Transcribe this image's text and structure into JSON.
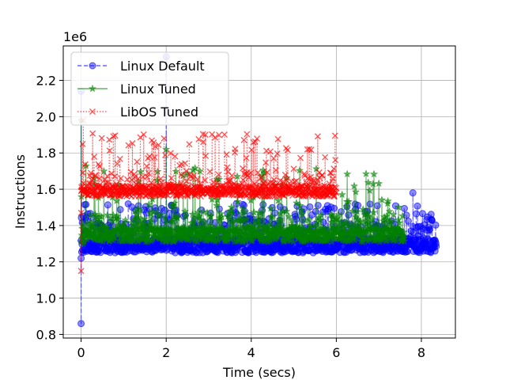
{
  "chart_data": {
    "type": "line",
    "xlabel": "Time (secs)",
    "ylabel": "Instructions",
    "y_offset_label": "1e6",
    "xlim": [
      -0.42,
      8.8
    ],
    "ylim": [
      0.78,
      2.39
    ],
    "x_ticks": [
      0,
      2,
      4,
      6,
      8
    ],
    "x_tick_labels": [
      "0",
      "2",
      "4",
      "6",
      "8"
    ],
    "y_ticks": [
      0.8,
      1.0,
      1.2,
      1.4,
      1.6,
      1.8,
      2.0,
      2.2
    ],
    "y_tick_labels": [
      "0.8",
      "1.0",
      "1.2",
      "1.4",
      "1.6",
      "1.8",
      "2.0",
      "2.2"
    ],
    "grid": true,
    "legend_position": "top-left",
    "series": [
      {
        "name": "Linux Default",
        "color": "#0000ff",
        "marker": "circle",
        "linestyle": "dashed",
        "x_end": 8.35,
        "base": 1.27,
        "band_low": 1.25,
        "band_high": 1.33,
        "spike_mid": 1.44,
        "spike_high": 1.52,
        "outliers": [
          [
            0.0,
            2.14
          ],
          [
            0.0,
            0.86
          ],
          [
            0.0,
            1.22
          ],
          [
            2.0,
            2.33
          ],
          [
            0.95,
            1.41
          ],
          [
            7.8,
            1.58
          ]
        ]
      },
      {
        "name": "Linux Tuned",
        "color": "#008000",
        "marker": "star",
        "linestyle": "solid",
        "x_end": 7.6,
        "base": 1.35,
        "band_low": 1.31,
        "band_high": 1.39,
        "spike_mid": 1.48,
        "spike_high": 1.73,
        "outliers": [
          [
            0.0,
            1.98
          ],
          [
            0.05,
            1.3
          ],
          [
            2.0,
            1.82
          ]
        ]
      },
      {
        "name": "LibOS Tuned",
        "color": "#ff0000",
        "marker": "x",
        "linestyle": "dotted",
        "x_end": 6.0,
        "base": 1.59,
        "band_low": 1.56,
        "band_high": 1.62,
        "spike_mid": 1.7,
        "spike_high": 1.91,
        "outliers": [
          [
            0.0,
            1.15
          ],
          [
            0.0,
            1.47
          ],
          [
            0.05,
            1.98
          ]
        ]
      }
    ]
  }
}
